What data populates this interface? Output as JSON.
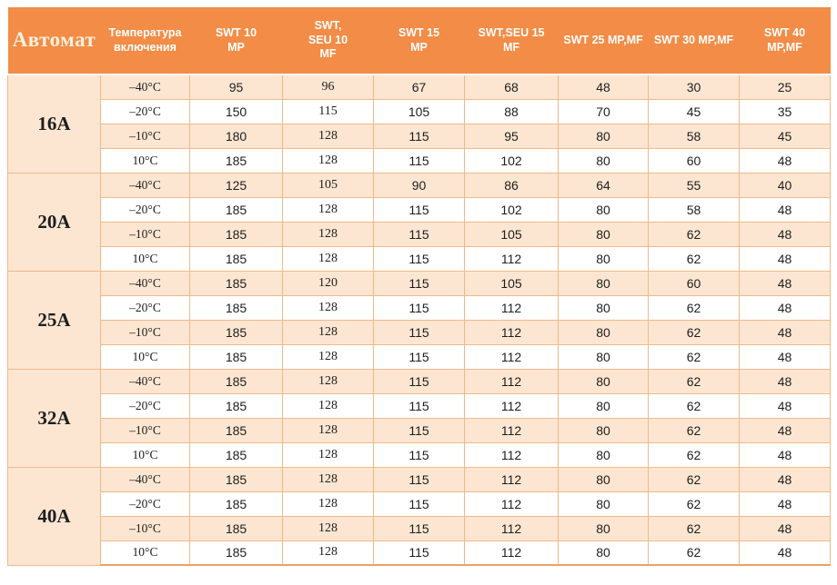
{
  "table": {
    "headers": [
      "Автомат",
      "Температура\nвключения",
      "SWT 10\nMP",
      "SWT,\nSEU 10\nMF",
      "SWT 15\nMP",
      "SWT,SEU  15\nMF",
      "SWT 25 MP,MF",
      "SWT 30 MP,MF",
      "SWT 40\nMP,MF"
    ],
    "groups": [
      {
        "label": "16А",
        "rows": [
          {
            "temp": "–40°C",
            "values": [
              95,
              96,
              67,
              68,
              48,
              30,
              25
            ]
          },
          {
            "temp": "–20°C",
            "values": [
              150,
              115,
              105,
              88,
              70,
              45,
              35
            ]
          },
          {
            "temp": "–10°C",
            "values": [
              180,
              128,
              115,
              95,
              80,
              58,
              45
            ]
          },
          {
            "temp": "10°C",
            "values": [
              185,
              128,
              115,
              102,
              80,
              60,
              48
            ]
          }
        ]
      },
      {
        "label": "20А",
        "rows": [
          {
            "temp": "–40°C",
            "values": [
              125,
              105,
              90,
              86,
              64,
              55,
              40
            ]
          },
          {
            "temp": "–20°C",
            "values": [
              185,
              128,
              115,
              102,
              80,
              58,
              48
            ]
          },
          {
            "temp": "–10°C",
            "values": [
              185,
              128,
              115,
              105,
              80,
              62,
              48
            ]
          },
          {
            "temp": "10°C",
            "values": [
              185,
              128,
              115,
              112,
              80,
              62,
              48
            ]
          }
        ]
      },
      {
        "label": "25А",
        "rows": [
          {
            "temp": "–40°C",
            "values": [
              185,
              120,
              115,
              105,
              80,
              60,
              48
            ]
          },
          {
            "temp": "–20°C",
            "values": [
              185,
              128,
              115,
              112,
              80,
              62,
              48
            ]
          },
          {
            "temp": "–10°C",
            "values": [
              185,
              128,
              115,
              112,
              80,
              62,
              48
            ]
          },
          {
            "temp": "10°C",
            "values": [
              185,
              128,
              115,
              112,
              80,
              62,
              48
            ]
          }
        ]
      },
      {
        "label": "32А",
        "rows": [
          {
            "temp": "–40°C",
            "values": [
              185,
              128,
              115,
              112,
              80,
              62,
              48
            ]
          },
          {
            "temp": "–20°C",
            "values": [
              185,
              128,
              115,
              112,
              80,
              62,
              48
            ]
          },
          {
            "temp": "–10°C",
            "values": [
              185,
              128,
              115,
              112,
              80,
              62,
              48
            ]
          },
          {
            "temp": "10°C",
            "values": [
              185,
              128,
              115,
              112,
              80,
              62,
              48
            ]
          }
        ]
      },
      {
        "label": "40А",
        "rows": [
          {
            "temp": "–40°C",
            "values": [
              185,
              128,
              115,
              112,
              80,
              62,
              48
            ]
          },
          {
            "temp": "–20°C",
            "values": [
              185,
              128,
              115,
              112,
              80,
              62,
              48
            ]
          },
          {
            "temp": "–10°C",
            "values": [
              185,
              128,
              115,
              112,
              80,
              62,
              48
            ]
          },
          {
            "temp": "10°C",
            "values": [
              185,
              128,
              115,
              112,
              80,
              62,
              48
            ]
          }
        ]
      }
    ]
  },
  "colors": {
    "header_bg": "#F28C46",
    "header_text": "#FFFFFF",
    "title_text": "#FBF0DC",
    "row_stripe": "#FCE6D2",
    "row_white": "#FFFFFF",
    "grid_border": "#F2B887",
    "bottom_border": "#E9A163",
    "cell_text": "#1E1E1E"
  }
}
